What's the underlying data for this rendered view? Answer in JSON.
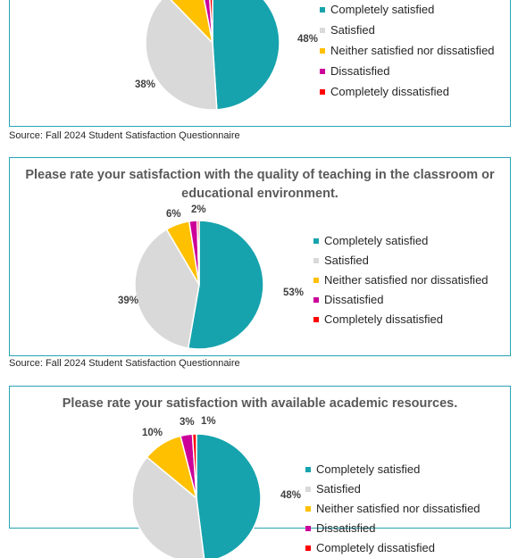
{
  "colors": [
    "#16a3ad",
    "#d9d9d9",
    "#ffc000",
    "#cc0099",
    "#ff0000"
  ],
  "legend_labels": [
    "Completely satisfied",
    "Satisfied",
    "Neither satisfied nor dissatisfied",
    "Dissatisfied",
    "Completely dissatisfied"
  ],
  "source": "Source: Fall 2024 Student Satisfaction Questionnaire",
  "chart_data": [
    {
      "type": "pie",
      "title": "",
      "categories": [
        "Completely satisfied",
        "Satisfied",
        "Neither satisfied nor dissatisfied",
        "Dissatisfied",
        "Completely dissatisfied"
      ],
      "values": [
        48,
        38,
        9,
        2,
        1
      ],
      "labels": [
        "48%",
        "38%",
        "",
        "",
        ""
      ],
      "legend": "right"
    },
    {
      "type": "pie",
      "title": "Please rate your satisfaction with the quality of teaching in the classroom or educational environment.",
      "categories": [
        "Completely satisfied",
        "Satisfied",
        "Neither satisfied nor dissatisfied",
        "Dissatisfied",
        "Completely dissatisfied"
      ],
      "values": [
        53,
        39,
        6,
        2,
        0.5
      ],
      "labels": [
        "53%",
        "39%",
        "6%",
        "2%",
        ""
      ],
      "legend": "right"
    },
    {
      "type": "pie",
      "title": "Please rate your satisfaction with available academic resources.",
      "categories": [
        "Completely satisfied",
        "Satisfied",
        "Neither satisfied nor dissatisfied",
        "Dissatisfied",
        "Completely dissatisfied"
      ],
      "values": [
        48,
        38,
        10,
        3,
        1
      ],
      "labels": [
        "48%",
        "",
        "10%",
        "3%",
        "1%"
      ],
      "legend": "right"
    }
  ]
}
